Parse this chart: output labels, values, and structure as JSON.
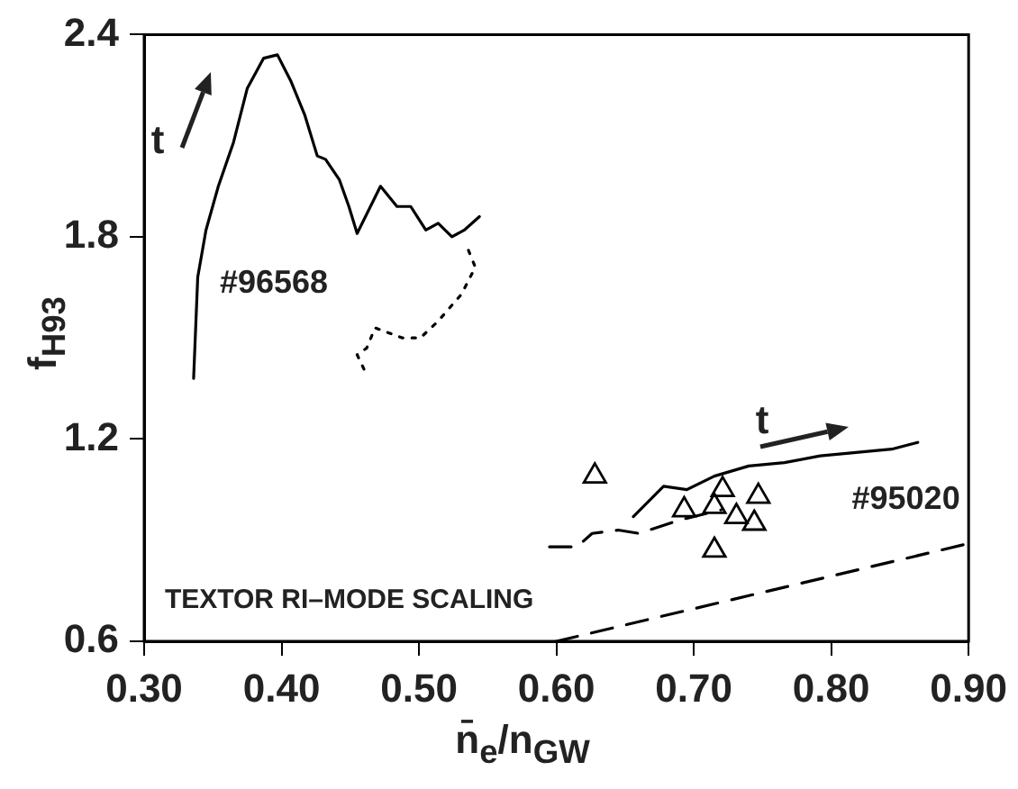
{
  "chart_data": {
    "type": "line",
    "xlabel": "n̄$_{e}$/n$_{GW}$",
    "ylabel": "f$_{H93}$",
    "xlim": [
      0.3,
      0.9
    ],
    "xticks": [
      {
        "value": 0.3,
        "label": "0.30"
      },
      {
        "value": 0.4,
        "label": "0.40"
      },
      {
        "value": 0.5,
        "label": "0.50"
      },
      {
        "value": 0.6,
        "label": "0.60"
      },
      {
        "value": 0.7,
        "label": "0.70"
      },
      {
        "value": 0.8,
        "label": "0.80"
      },
      {
        "value": 0.9,
        "label": "0.90"
      }
    ],
    "ylim": [
      0.6,
      2.4
    ],
    "yticks": [
      0.6,
      1.2,
      1.8,
      2.4
    ],
    "grid": false,
    "legend": false,
    "annotations": [
      "#96568",
      "#95020",
      "TEXTOR RI–MODE SCALING",
      "t",
      "t"
    ],
    "series": [
      {
        "type": "line",
        "color": "#000000",
        "line_style": "solid",
        "marker": "none",
        "x": [
          0.336,
          0.339,
          0.345,
          0.354,
          0.365,
          0.375,
          0.387,
          0.397,
          0.407,
          0.417,
          0.426,
          0.432,
          0.442,
          0.449,
          0.455,
          0.472,
          0.484,
          0.494,
          0.505,
          0.514,
          0.524,
          0.533,
          0.544
        ],
        "values": [
          1.38,
          1.68,
          1.82,
          1.95,
          2.08,
          2.24,
          2.33,
          2.34,
          2.26,
          2.16,
          2.04,
          2.03,
          1.97,
          1.89,
          1.81,
          1.95,
          1.89,
          1.89,
          1.82,
          1.84,
          1.8,
          1.82,
          1.86
        ]
      },
      {
        "type": "line",
        "color": "#000000",
        "line_style": "dotted",
        "marker": "none",
        "x": [
          0.536,
          0.541,
          0.531,
          0.514,
          0.501,
          0.488,
          0.468,
          0.462,
          0.455,
          0.462
        ],
        "values": [
          1.76,
          1.71,
          1.63,
          1.55,
          1.5,
          1.5,
          1.53,
          1.47,
          1.45,
          1.39
        ]
      },
      {
        "type": "line",
        "color": "#000000",
        "line_style": "solid",
        "marker": "none",
        "x": [
          0.656,
          0.678,
          0.695,
          0.715,
          0.74,
          0.766,
          0.792,
          0.818,
          0.844,
          0.863
        ],
        "values": [
          0.97,
          1.06,
          1.05,
          1.09,
          1.12,
          1.13,
          1.15,
          1.16,
          1.17,
          1.19
        ]
      },
      {
        "type": "line",
        "color": "#000000",
        "line_style": "dashed",
        "marker": "none",
        "x": [
          0.595,
          0.615,
          0.626,
          0.645,
          0.66,
          0.69,
          0.72
        ],
        "values": [
          0.88,
          0.88,
          0.92,
          0.93,
          0.92,
          0.96,
          0.99
        ]
      },
      {
        "type": "scatter",
        "color": "#000000",
        "marker": "triangle",
        "x": [
          0.628,
          0.693,
          0.715,
          0.721,
          0.731,
          0.747,
          0.744,
          0.715
        ],
        "values": [
          1.09,
          0.99,
          1.0,
          1.05,
          0.97,
          1.03,
          0.95,
          0.87
        ]
      },
      {
        "type": "line",
        "color": "#000000",
        "line_style": "dashed",
        "marker": "none",
        "x": [
          0.6,
          0.9
        ],
        "values": [
          0.6,
          0.89
        ]
      }
    ]
  }
}
